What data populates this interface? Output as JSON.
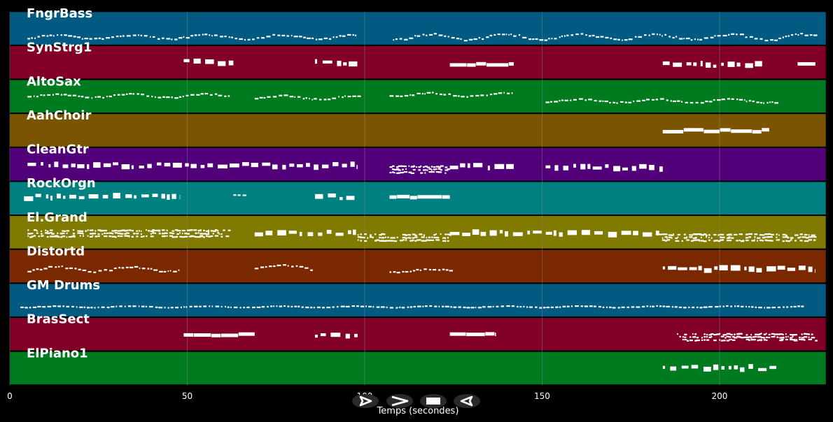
{
  "chart_data": {
    "type": "piano-roll",
    "xlabel": "Temps (secondes)",
    "xlim": [
      0,
      230
    ],
    "x_ticks": [
      0,
      50,
      100,
      150,
      200
    ],
    "grid": true,
    "tracks": [
      {
        "name": "FngrBass",
        "color": "#005a82",
        "segments": [
          {
            "start": 5,
            "end": 98,
            "level": 0.72,
            "style": "dotted",
            "wave": 0.06
          },
          {
            "start": 108,
            "end": 227,
            "level": 0.72,
            "style": "dotted",
            "wave": 0.08
          }
        ]
      },
      {
        "name": "SynStrg1",
        "color": "#820028",
        "segments": [
          {
            "start": 49,
            "end": 63,
            "level": 0.48,
            "style": "blocks"
          },
          {
            "start": 86,
            "end": 98,
            "level": 0.5,
            "style": "blocks"
          },
          {
            "start": 124,
            "end": 142,
            "level": 0.55,
            "style": "bar"
          },
          {
            "start": 184,
            "end": 212,
            "level": 0.55,
            "style": "blocks"
          },
          {
            "start": 222,
            "end": 227,
            "level": 0.52,
            "style": "bar"
          }
        ]
      },
      {
        "name": "AltoSax",
        "color": "#007a1e",
        "segments": [
          {
            "start": 5,
            "end": 62,
            "level": 0.45,
            "style": "dotted",
            "wave": 0.05
          },
          {
            "start": 69,
            "end": 98,
            "level": 0.5,
            "style": "dotted",
            "wave": 0.05
          },
          {
            "start": 107,
            "end": 142,
            "level": 0.42,
            "style": "dotted",
            "wave": 0.05
          },
          {
            "start": 151,
            "end": 216,
            "level": 0.6,
            "style": "dotted",
            "wave": 0.05
          }
        ]
      },
      {
        "name": "AahChoir",
        "color": "#7a5400",
        "segments": [
          {
            "start": 184,
            "end": 214,
            "level": 0.5,
            "style": "bar"
          }
        ]
      },
      {
        "name": "CleanGtr",
        "color": "#52007a",
        "segments": [
          {
            "start": 5,
            "end": 98,
            "level": 0.52,
            "style": "blocks"
          },
          {
            "start": 107,
            "end": 124,
            "level": 0.62,
            "style": "dense"
          },
          {
            "start": 124,
            "end": 142,
            "level": 0.55,
            "style": "blocks"
          },
          {
            "start": 151,
            "end": 184,
            "level": 0.58,
            "style": "blocks"
          }
        ]
      },
      {
        "name": "RockOrgn",
        "color": "#008080",
        "segments": [
          {
            "start": 4,
            "end": 48,
            "level": 0.45,
            "style": "blocks"
          },
          {
            "start": 63,
            "end": 66,
            "level": 0.35,
            "style": "dotted",
            "wave": 0.02
          },
          {
            "start": 86,
            "end": 98,
            "level": 0.45,
            "style": "blocks"
          },
          {
            "start": 107,
            "end": 124,
            "level": 0.45,
            "style": "bar"
          }
        ]
      },
      {
        "name": "El.Grand",
        "color": "#807a00",
        "segments": [
          {
            "start": 5,
            "end": 62,
            "level": 0.5,
            "style": "dense"
          },
          {
            "start": 69,
            "end": 98,
            "level": 0.52,
            "style": "blocks"
          },
          {
            "start": 98,
            "end": 124,
            "level": 0.62,
            "style": "dense"
          },
          {
            "start": 124,
            "end": 183,
            "level": 0.52,
            "style": "blocks"
          },
          {
            "start": 183,
            "end": 227,
            "level": 0.62,
            "style": "dense"
          }
        ]
      },
      {
        "name": "Distortd",
        "color": "#7a2800",
        "segments": [
          {
            "start": 5,
            "end": 48,
            "level": 0.55,
            "style": "dotted",
            "wave": 0.07
          },
          {
            "start": 69,
            "end": 86,
            "level": 0.5,
            "style": "dotted",
            "wave": 0.08
          },
          {
            "start": 107,
            "end": 124,
            "level": 0.6,
            "style": "dotted",
            "wave": 0.05
          },
          {
            "start": 184,
            "end": 227,
            "level": 0.58,
            "style": "blocks"
          }
        ]
      },
      {
        "name": "GM Drums",
        "color": "#005a82",
        "segments": [
          {
            "start": 3,
            "end": 224,
            "level": 0.66,
            "style": "dotted",
            "wave": 0.02
          }
        ]
      },
      {
        "name": "BrasSect",
        "color": "#820028",
        "segments": [
          {
            "start": 49,
            "end": 69,
            "level": 0.5,
            "style": "bar"
          },
          {
            "start": 86,
            "end": 98,
            "level": 0.5,
            "style": "blocks"
          },
          {
            "start": 124,
            "end": 137,
            "level": 0.5,
            "style": "bar"
          },
          {
            "start": 188,
            "end": 227,
            "level": 0.55,
            "style": "dense"
          }
        ]
      },
      {
        "name": "ElPiano1",
        "color": "#007a1e",
        "segments": [
          {
            "start": 184,
            "end": 216,
            "level": 0.48,
            "style": "blocks"
          }
        ]
      }
    ]
  },
  "controls": [
    {
      "name": "play-button",
      "icon": "play-icon"
    },
    {
      "name": "forward-button",
      "icon": "chevron-right-icon"
    },
    {
      "name": "stop-button",
      "icon": "stop-icon"
    },
    {
      "name": "back-button",
      "icon": "back-icon"
    }
  ],
  "colors": {
    "background": "#000000",
    "note": "#ffffff",
    "grid": "#8a8a8a",
    "control": "#2a2a2a"
  }
}
